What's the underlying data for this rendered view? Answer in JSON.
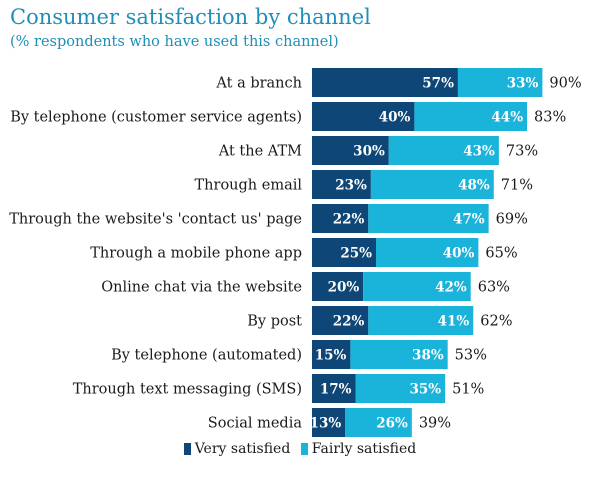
{
  "colors": {
    "very": "#0e4777",
    "fairly": "#1ab3d9",
    "title": "#1e8fb8"
  },
  "chart_data": {
    "type": "bar",
    "orientation": "horizontal",
    "stacked": true,
    "title": "Consumer satisfaction by channel",
    "subtitle": "(% respondents who have used this channel)",
    "categories": [
      "At a branch",
      "By telephone (customer service agents)",
      "At the ATM",
      "Through email",
      "Through the website's 'contact us' page",
      "Through a mobile phone app",
      "Online chat via the website",
      "By post",
      "By telephone (automated)",
      "Through text messaging (SMS)",
      "Social media"
    ],
    "series": [
      {
        "name": "Very satisfied",
        "values": [
          57,
          40,
          30,
          23,
          22,
          25,
          20,
          22,
          15,
          17,
          13
        ]
      },
      {
        "name": "Fairly satisfied",
        "values": [
          33,
          44,
          43,
          48,
          47,
          40,
          42,
          41,
          38,
          35,
          26
        ]
      }
    ],
    "totals": [
      90,
      83,
      73,
      71,
      69,
      65,
      63,
      62,
      53,
      51,
      39
    ],
    "value_suffix": "%",
    "legend_position": "bottom",
    "grid": false
  }
}
